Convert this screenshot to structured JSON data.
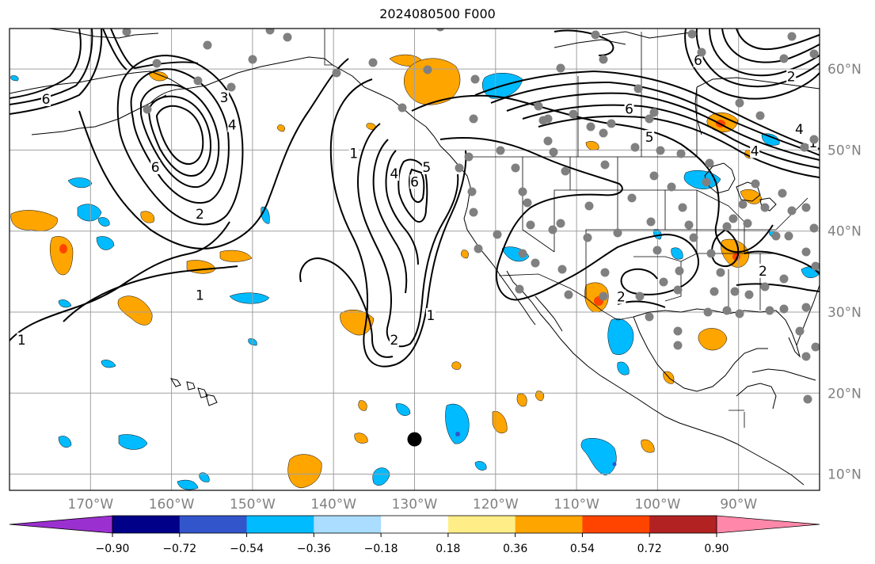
{
  "title": "2024080500 F000",
  "map": {
    "projection": "plate-carree",
    "lon_range": [
      -180,
      -80
    ],
    "lat_range": [
      8,
      65
    ],
    "lon_ticks": [
      {
        "value": -170,
        "label": "170°W"
      },
      {
        "value": -160,
        "label": "160°W"
      },
      {
        "value": -150,
        "label": "150°W"
      },
      {
        "value": -140,
        "label": "140°W"
      },
      {
        "value": -130,
        "label": "130°W"
      },
      {
        "value": -120,
        "label": "120°W"
      },
      {
        "value": -110,
        "label": "110°W"
      },
      {
        "value": -100,
        "label": "100°W"
      },
      {
        "value": -90,
        "label": "90°W"
      }
    ],
    "lat_ticks": [
      {
        "value": 10,
        "label": "10°N"
      },
      {
        "value": 20,
        "label": "20°N"
      },
      {
        "value": 30,
        "label": "30°N"
      },
      {
        "value": 40,
        "label": "40°N"
      },
      {
        "value": 50,
        "label": "50°N"
      },
      {
        "value": 60,
        "label": "60°N"
      }
    ],
    "grid": true,
    "storm_marker": {
      "lon": -130,
      "lat": 14.3
    }
  },
  "colorbar": {
    "orientation": "horizontal",
    "extend": "both",
    "under_color": "#9b30d0",
    "over_color": "#ff88aa",
    "colors": [
      "#000088",
      "#3355cc",
      "#00bbff",
      "#aaddff",
      "#ffffff",
      "#ffee88",
      "#ffa500",
      "#ff4400",
      "#b22222"
    ],
    "ticks": [
      "−0.90",
      "−0.72",
      "−0.54",
      "−0.36",
      "−0.18",
      "0.18",
      "0.36",
      "0.54",
      "0.72",
      "0.90"
    ]
  },
  "contour_labels": [
    {
      "text": "6",
      "lon": -175.5,
      "lat": 56.2
    },
    {
      "text": "3",
      "lon": -153.5,
      "lat": 56.4
    },
    {
      "text": "4",
      "lon": -152.5,
      "lat": 53.0
    },
    {
      "text": "6",
      "lon": -162.0,
      "lat": 47.8
    },
    {
      "text": "2",
      "lon": -156.5,
      "lat": 42.0
    },
    {
      "text": "1",
      "lon": -156.5,
      "lat": 32.0
    },
    {
      "text": "1",
      "lon": -178.5,
      "lat": 26.5
    },
    {
      "text": "1",
      "lon": -137.5,
      "lat": 49.5
    },
    {
      "text": "5",
      "lon": -128.5,
      "lat": 47.8
    },
    {
      "text": "6",
      "lon": -130.0,
      "lat": 46.0
    },
    {
      "text": "4",
      "lon": -132.5,
      "lat": 47.0
    },
    {
      "text": "2",
      "lon": -132.5,
      "lat": 26.5
    },
    {
      "text": "1",
      "lon": -128.0,
      "lat": 29.5
    },
    {
      "text": "6",
      "lon": -95.0,
      "lat": 61.0
    },
    {
      "text": "6",
      "lon": -103.5,
      "lat": 55.0
    },
    {
      "text": "5",
      "lon": -101.0,
      "lat": 51.5
    },
    {
      "text": "2",
      "lon": -83.5,
      "lat": 59.0
    },
    {
      "text": "4",
      "lon": -88.0,
      "lat": 49.8
    },
    {
      "text": "4",
      "lon": -82.5,
      "lat": 52.5
    },
    {
      "text": "2",
      "lon": -87.0,
      "lat": 35.0
    },
    {
      "text": "2",
      "lon": -104.5,
      "lat": 31.8
    },
    {
      "text": "1",
      "lon": -80.8,
      "lat": 50.8
    }
  ]
}
